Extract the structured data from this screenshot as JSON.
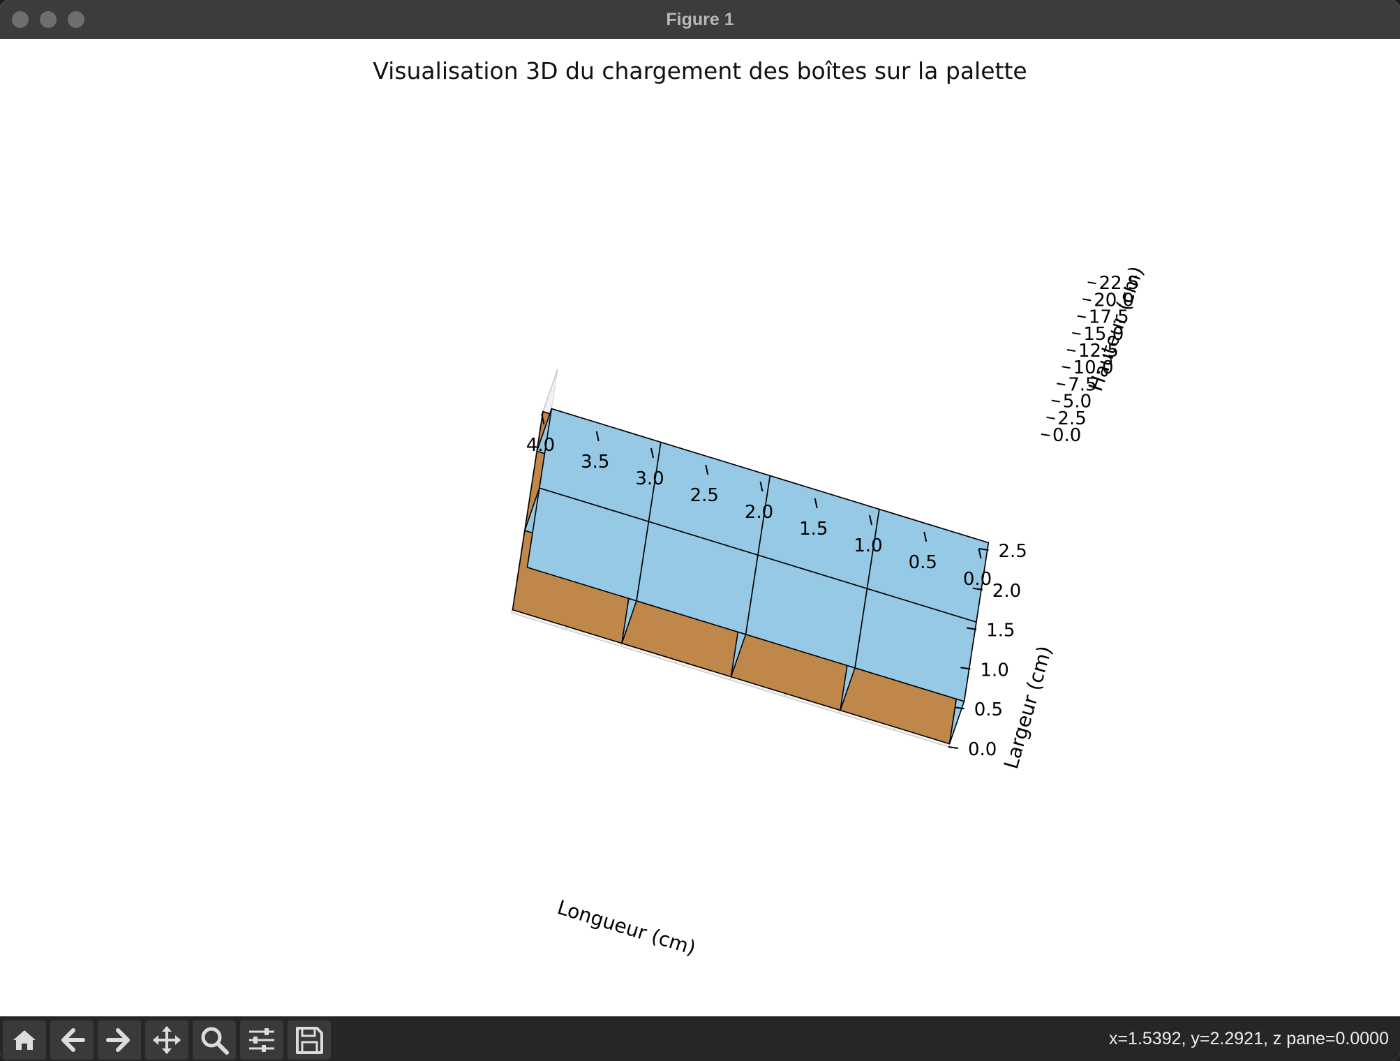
{
  "window": {
    "title": "Figure 1"
  },
  "toolbar": {
    "buttons": [
      "home-icon",
      "back-arrow-icon",
      "forward-arrow-icon",
      "pan-icon",
      "zoom-icon",
      "configure-subplots-icon",
      "save-icon"
    ],
    "coords": "x=1.5392, y=2.2921, z pane=0.0000"
  },
  "colors": {
    "box": "#95c9e6",
    "pallet": "#c0874b",
    "pane": "#f2f2f2"
  },
  "chart_data": {
    "type": "3d-bar",
    "title": "Visualisation 3D du chargement des boîtes sur la palette",
    "xlabel": "Longueur (cm)",
    "ylabel": "Largeur (cm)",
    "zlabel": "Hauteur (cm)",
    "x_ticks": [
      "4.0",
      "3.5",
      "3.0",
      "2.5",
      "2.0",
      "1.5",
      "1.0",
      "0.5",
      "0.0"
    ],
    "y_ticks": [
      "0.0",
      "0.5",
      "1.0",
      "1.5",
      "2.0",
      "2.5"
    ],
    "z_ticks": [
      "22.5",
      "20.0",
      "17.5",
      "15.0",
      "12.5",
      "10.0",
      "7.5",
      "5.0",
      "2.5",
      "0.0"
    ],
    "xlim": [
      0,
      4
    ],
    "ylim": [
      0,
      2.5
    ],
    "pallet": {
      "x": [
        0,
        4
      ],
      "y": [
        0,
        2.5
      ],
      "z": [
        0,
        1.5
      ]
    },
    "boxes": [
      {
        "x": [
          0,
          1
        ],
        "y": [
          0,
          1
        ]
      },
      {
        "x": [
          1,
          2
        ],
        "y": [
          0,
          1
        ]
      },
      {
        "x": [
          2,
          3
        ],
        "y": [
          0,
          1
        ]
      },
      {
        "x": [
          3,
          4
        ],
        "y": [
          0,
          1
        ]
      },
      {
        "x": [
          0,
          1
        ],
        "y": [
          1,
          2
        ]
      },
      {
        "x": [
          1,
          2
        ],
        "y": [
          1,
          2
        ]
      },
      {
        "x": [
          2,
          3
        ],
        "y": [
          1,
          2
        ]
      },
      {
        "x": [
          3,
          4
        ],
        "y": [
          1,
          2
        ]
      }
    ],
    "box_z": [
      1.5,
      22.5
    ]
  }
}
